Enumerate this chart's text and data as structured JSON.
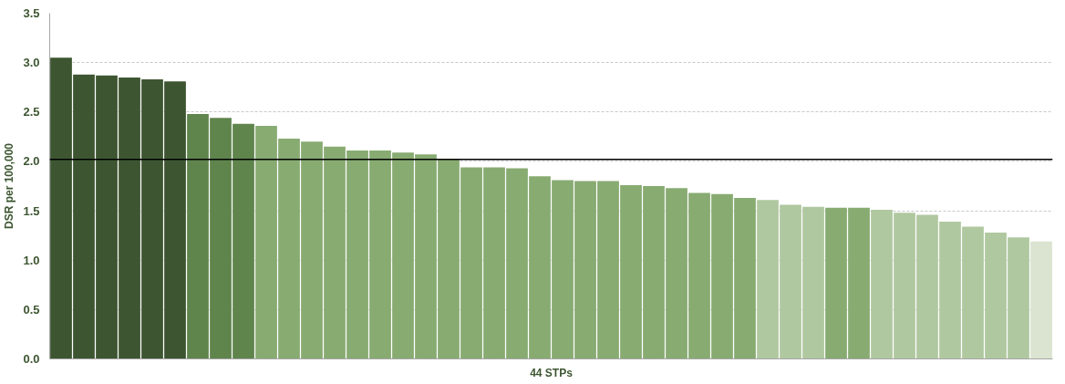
{
  "chart_data": {
    "type": "bar",
    "xlabel": "44 STPs",
    "ylabel": "DSR per 100,000",
    "categories": [
      null,
      null,
      null,
      null,
      null,
      null,
      null,
      null,
      null,
      null,
      null,
      null,
      null,
      null,
      null,
      null,
      null,
      null,
      null,
      null,
      null,
      null,
      null,
      null,
      null,
      null,
      null,
      null,
      null,
      null,
      null,
      null,
      null,
      null,
      null,
      null,
      null,
      null,
      null,
      null,
      null,
      null,
      null,
      null
    ],
    "values": [
      3.05,
      2.88,
      2.87,
      2.85,
      2.83,
      2.81,
      2.48,
      2.44,
      2.38,
      2.36,
      2.23,
      2.2,
      2.15,
      2.11,
      2.11,
      2.09,
      2.07,
      2.02,
      1.94,
      1.94,
      1.93,
      1.85,
      1.81,
      1.8,
      1.8,
      1.76,
      1.75,
      1.73,
      1.68,
      1.67,
      1.63,
      1.61,
      1.56,
      1.54,
      1.53,
      1.53,
      1.51,
      1.48,
      1.46,
      1.39,
      1.34,
      1.28,
      1.23,
      1.19
    ],
    "colors": [
      "#3d5631",
      "#3d5631",
      "#3d5631",
      "#3d5631",
      "#3d5631",
      "#3d5631",
      "#5f854d",
      "#5f854d",
      "#5f854d",
      "#88ab72",
      "#88ab72",
      "#88ab72",
      "#88ab72",
      "#88ab72",
      "#88ab72",
      "#88ab72",
      "#88ab72",
      "#88ab72",
      "#88ab72",
      "#88ab72",
      "#88ab72",
      "#88ab72",
      "#88ab72",
      "#88ab72",
      "#88ab72",
      "#88ab72",
      "#88ab72",
      "#88ab72",
      "#88ab72",
      "#88ab72",
      "#88ab72",
      "#b0c8a0",
      "#b0c8a0",
      "#b0c8a0",
      "#88ab72",
      "#88ab72",
      "#b0c8a0",
      "#b0c8a0",
      "#b0c8a0",
      "#b0c8a0",
      "#b0c8a0",
      "#b0c8a0",
      "#b0c8a0",
      "#dae4d0"
    ],
    "ylim": [
      0,
      3.5
    ],
    "yticks": [
      {
        "value": 0,
        "label": "0.0"
      },
      {
        "value": 0.5,
        "label": "0.5"
      },
      {
        "value": 1,
        "label": "1.0"
      },
      {
        "value": 1.5,
        "label": "1.5"
      },
      {
        "value": 2,
        "label": "2.0"
      },
      {
        "value": 2.5,
        "label": "2.5"
      },
      {
        "value": 3,
        "label": "3.0"
      },
      {
        "value": 3.5,
        "label": "3.5"
      }
    ],
    "ref_lines": [
      {
        "axis": "y",
        "value": 2.02,
        "label": null,
        "color": "#000000"
      }
    ],
    "grid": "y",
    "tick_labels": "y"
  }
}
